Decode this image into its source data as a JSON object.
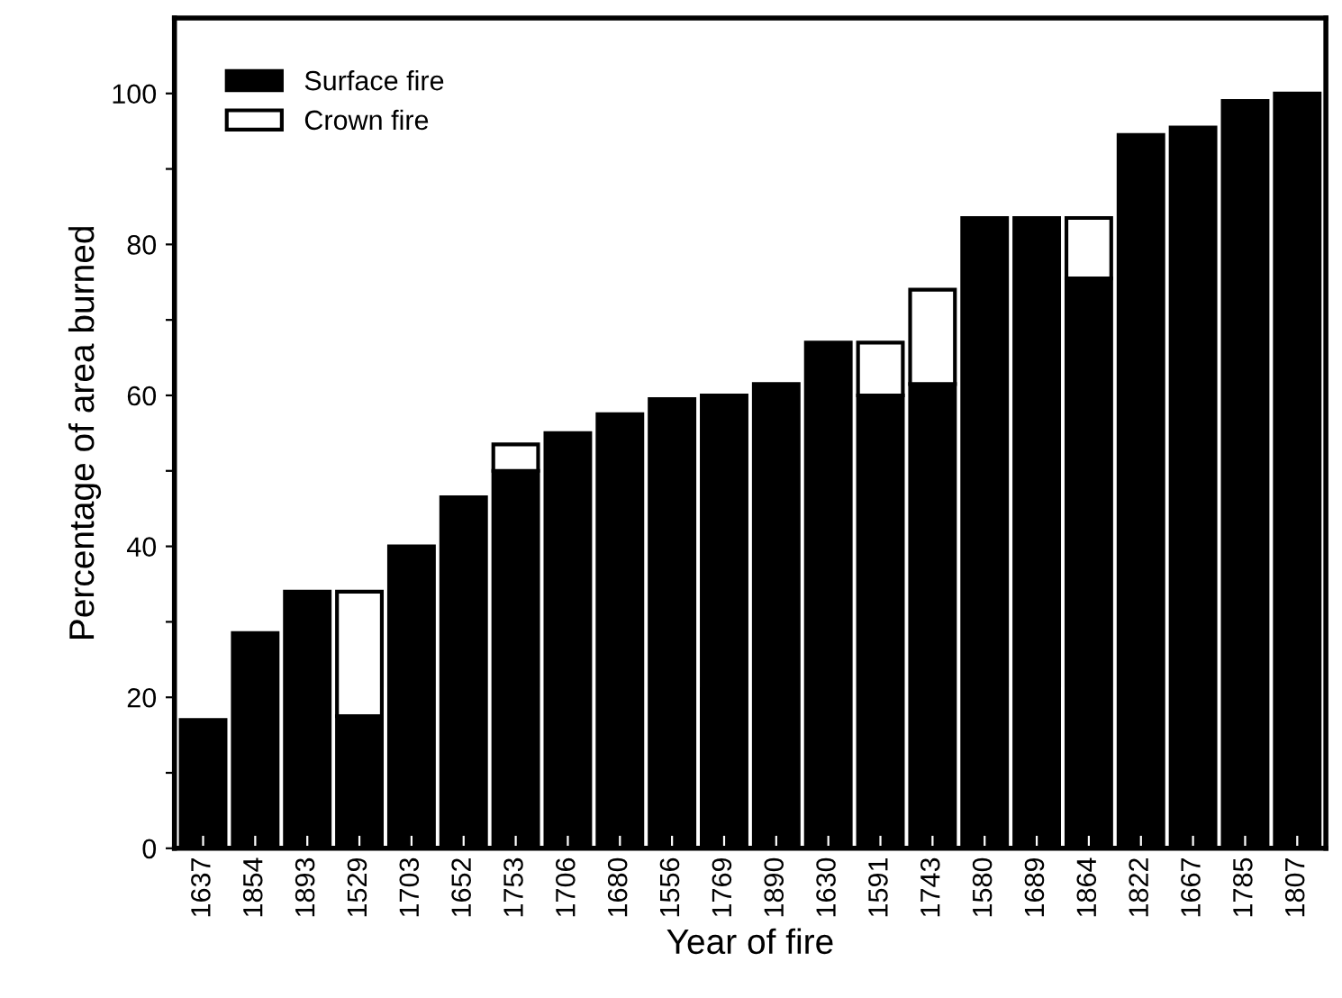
{
  "chart_data": {
    "type": "bar",
    "stacked": true,
    "xlabel": "Year of fire",
    "ylabel": "Percentage of area burned",
    "categories": [
      "1637",
      "1854",
      "1893",
      "1529",
      "1703",
      "1652",
      "1753",
      "1706",
      "1680",
      "1556",
      "1769",
      "1890",
      "1630",
      "1591",
      "1743",
      "1580",
      "1689",
      "1864",
      "1822",
      "1667",
      "1785",
      "1807"
    ],
    "series": [
      {
        "name": "Surface fire",
        "color": "#000000",
        "values": [
          17,
          28.5,
          34,
          17.5,
          40,
          46.5,
          50,
          55,
          57.5,
          59.5,
          60,
          61.5,
          67,
          60,
          61.5,
          83.5,
          83.5,
          75.5,
          94.5,
          95.5,
          99,
          100
        ]
      },
      {
        "name": "Crown fire",
        "color": "#ffffff",
        "values": [
          null,
          null,
          null,
          16.5,
          null,
          null,
          3.5,
          null,
          null,
          null,
          null,
          null,
          null,
          7,
          12.5,
          null,
          null,
          8,
          null,
          null,
          null,
          null
        ]
      }
    ],
    "ylim": [
      0,
      110
    ],
    "yticks": [
      0,
      {
        "value": 10,
        "label": null
      },
      20,
      {
        "value": 30,
        "label": null
      },
      40,
      {
        "value": 50,
        "label": null
      },
      60,
      {
        "value": 70,
        "label": null
      },
      80,
      {
        "value": 90,
        "label": null
      },
      100
    ],
    "legend": "top left",
    "grid": false
  }
}
